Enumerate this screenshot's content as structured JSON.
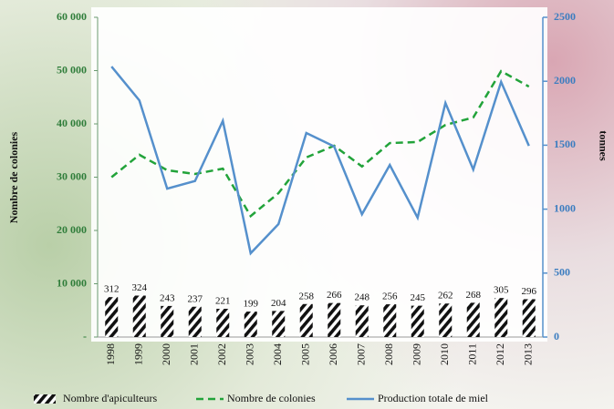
{
  "chart_data": {
    "type": "combo",
    "y_label": "Nombre de colonies",
    "y2_label": "tonnes",
    "categories": [
      "1998",
      "1999",
      "2000",
      "2001",
      "2002",
      "2003",
      "2004",
      "2005",
      "2006",
      "2007",
      "2008",
      "2009",
      "2010",
      "2011",
      "2012",
      "2013"
    ],
    "series": [
      {
        "name": "Nombre d'apiculteurs",
        "type": "bar",
        "axis": "y2",
        "color": "#111111",
        "values": [
          312,
          324,
          243,
          237,
          221,
          199,
          204,
          258,
          266,
          248,
          256,
          245,
          262,
          268,
          305,
          296
        ]
      },
      {
        "name": "Nombre de colonies",
        "type": "line",
        "dashed": true,
        "color": "#22a33a",
        "values": [
          30000,
          34200,
          31300,
          30600,
          31600,
          22700,
          27000,
          33700,
          35900,
          32000,
          36400,
          36600,
          39800,
          41200,
          49900,
          47000
        ]
      },
      {
        "name": "Production totale de miel",
        "type": "line",
        "axis": "y2",
        "color": "#5590cc",
        "values": [
          2115,
          1850,
          1160,
          1220,
          1690,
          655,
          883,
          1595,
          1490,
          960,
          1345,
          933,
          1830,
          1310,
          1995,
          1495
        ]
      }
    ],
    "ylim": [
      0,
      60000
    ],
    "yticks": [
      {
        "value": 0,
        "label": "-"
      },
      {
        "value": 10000,
        "label": "10 000"
      },
      {
        "value": 20000,
        "label": "20 000"
      },
      {
        "value": 30000,
        "label": "30 000"
      },
      {
        "value": 40000,
        "label": "40 000"
      },
      {
        "value": 50000,
        "label": "50 000"
      },
      {
        "value": 60000,
        "label": "60 000"
      }
    ],
    "y2lim": [
      0,
      2500
    ],
    "y2ticks": [
      0,
      500,
      1000,
      1500,
      2000,
      2500
    ],
    "grid": false
  }
}
